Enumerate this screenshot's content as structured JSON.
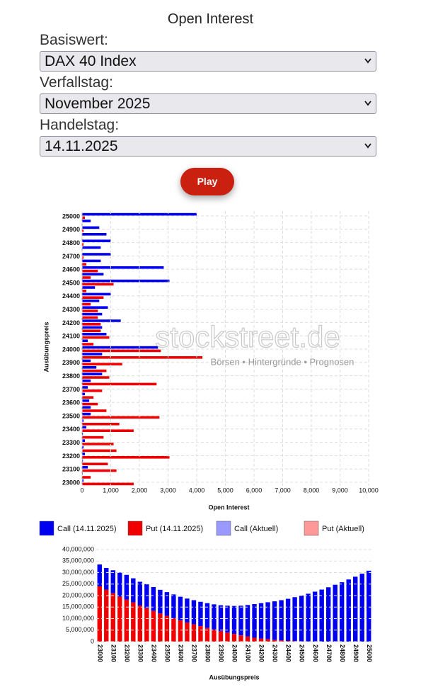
{
  "title": "Open Interest",
  "form": [
    {
      "label": "Basiswert:",
      "value": "DAX 40 Index"
    },
    {
      "label": "Verfallstag:",
      "value": "November 2025"
    },
    {
      "label": "Handelstag:",
      "value": "14.11.2025"
    }
  ],
  "button": "Play",
  "watermark": {
    "brand": "stockstreet.de",
    "tagline": "Börsen • Hintergründe • Prognosen"
  },
  "chart_data": [
    {
      "type": "hbar",
      "xlabel": "Open Interest",
      "ylabel": "Ausübungspreis",
      "categories": [
        "23000",
        null,
        "23100",
        null,
        "23200",
        null,
        "23300",
        null,
        "23400",
        null,
        "23500",
        null,
        "23600",
        null,
        "23700",
        null,
        "23800",
        null,
        "23900",
        null,
        "24000",
        null,
        "24100",
        null,
        "24200",
        null,
        "24300",
        null,
        "24400",
        null,
        "24500",
        null,
        "24600",
        null,
        "24700",
        null,
        "24800",
        null,
        "24900",
        null,
        "25000"
      ],
      "series": [
        {
          "name": "Call (14.11.2025)",
          "color": "#0000f0",
          "values": [
            50,
            20,
            200,
            30,
            100,
            50,
            100,
            30,
            150,
            50,
            300,
            300,
            250,
            100,
            200,
            300,
            700,
            500,
            300,
            700,
            2650,
            200,
            850,
            700,
            1350,
            700,
            900,
            600,
            1000,
            450,
            3050,
            750,
            2850,
            650,
            1000,
            650,
            1000,
            850,
            600,
            300,
            4000
          ]
        },
        {
          "name": "Put (14.11.2025)",
          "color": "#f00000",
          "values": [
            1800,
            300,
            1200,
            900,
            3050,
            1200,
            1100,
            750,
            1800,
            1300,
            2700,
            850,
            550,
            400,
            700,
            2600,
            950,
            850,
            1400,
            4200,
            2750,
            400,
            950,
            650,
            650,
            550,
            550,
            300,
            750,
            150,
            1100,
            300,
            550,
            150,
            50,
            0,
            50,
            0,
            50,
            0,
            100
          ]
        },
        {
          "name": "Call (Aktuell)",
          "color": "#9999ff"
        },
        {
          "name": "Put (Aktuell)",
          "color": "#ff9999"
        }
      ],
      "xlim": [
        0,
        10000
      ],
      "xticks": [
        0,
        {
          "value": 1000,
          "label": "1,000"
        },
        {
          "value": 2000,
          "label": "2,000"
        },
        {
          "value": 3000,
          "label": "3,000"
        },
        {
          "value": 4000,
          "label": "4,000"
        },
        {
          "value": 5000,
          "label": "5,000"
        },
        {
          "value": 6000,
          "label": "6,000"
        },
        {
          "value": 7000,
          "label": "7,000"
        },
        {
          "value": 8000,
          "label": "8,000"
        },
        {
          "value": 9000,
          "label": "9,000"
        },
        {
          "value": 10000,
          "label": "10,000"
        }
      ],
      "grid": true
    },
    {
      "type": "stacked_bar",
      "xlabel": "Ausübungspreis",
      "categories": [
        "23000",
        null,
        "23100",
        null,
        "23200",
        null,
        "23300",
        null,
        "23400",
        null,
        "23500",
        null,
        "23600",
        null,
        "23700",
        null,
        "23800",
        null,
        "23900",
        null,
        "24000",
        null,
        "24100",
        null,
        "24200",
        null,
        "24300",
        null,
        "24400",
        null,
        "24500",
        null,
        "24600",
        null,
        "24700",
        null,
        "24800",
        null,
        "24900",
        null,
        "25000"
      ],
      "series": [
        {
          "name": "Put",
          "color": "#f00000",
          "values": [
            24000000,
            22500000,
            21000000,
            19500000,
            18200000,
            17000000,
            15700000,
            14500000,
            13300000,
            12200000,
            11200000,
            10200000,
            9200000,
            8300000,
            7500000,
            6700000,
            5900000,
            5200000,
            4500000,
            3900000,
            3300000,
            2700000,
            2200000,
            1700000,
            1300000,
            1000000,
            700000,
            500000,
            300000,
            200000,
            100000,
            50000,
            0,
            0,
            0,
            0,
            0,
            0,
            0,
            0,
            0
          ]
        },
        {
          "name": "Call",
          "color": "#0000f0",
          "values": [
            9500000,
            9500000,
            10000000,
            10500000,
            10800000,
            10500000,
            10300000,
            10500000,
            10400000,
            10300000,
            10300000,
            10300000,
            10300000,
            10400000,
            10500000,
            10600000,
            10800000,
            11000000,
            11300000,
            11700000,
            12200000,
            12900000,
            13700000,
            14600000,
            15400000,
            16100000,
            16800000,
            17500000,
            18300000,
            19100000,
            19900000,
            20750000,
            21700000,
            22600000,
            23600000,
            24700000,
            25800000,
            27000000,
            28200000,
            29500000,
            30800000
          ]
        }
      ],
      "ylim": [
        0,
        40000000
      ],
      "yticks": [
        0,
        {
          "value": 5000000,
          "label": "5,000,000"
        },
        {
          "value": 10000000,
          "label": "10,000,000"
        },
        {
          "value": 15000000,
          "label": "15,000,000"
        },
        {
          "value": 20000000,
          "label": "20,000,000"
        },
        {
          "value": 25000000,
          "label": "25,000,000"
        },
        {
          "value": 30000000,
          "label": "30,000,000"
        },
        {
          "value": 35000000,
          "label": "35,000,000"
        },
        {
          "value": 40000000,
          "label": "40,000,000"
        }
      ],
      "grid": true
    }
  ]
}
